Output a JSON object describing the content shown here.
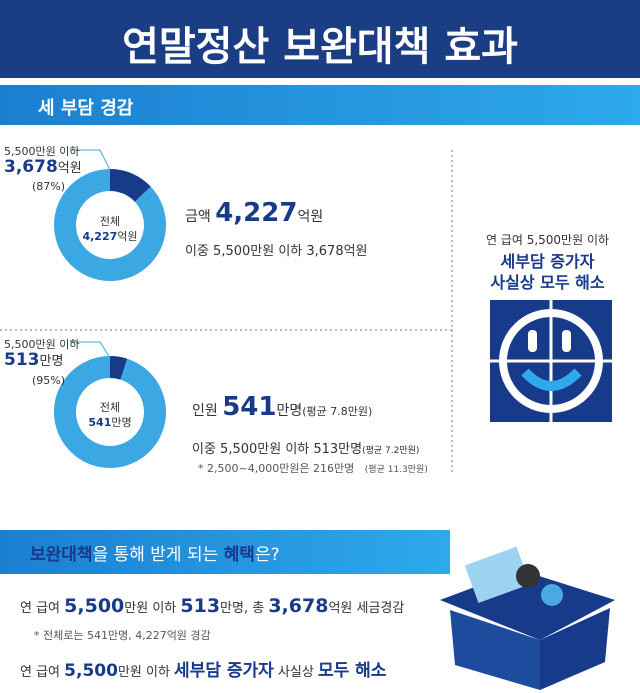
{
  "header": {
    "title": "연말정산 보완대책 효과"
  },
  "section1": {
    "title": "세 부담 경감",
    "tax": {
      "callout": [
        "5,500만원 이하",
        "3,678",
        "억원",
        "(87%)"
      ],
      "share": 87,
      "center": [
        "전체",
        "4,227",
        "억원"
      ],
      "amount": [
        "금액 ",
        "4,227",
        "억원"
      ],
      "sub": "이중 5,500만원 이하 3,678억원"
    },
    "people": {
      "callout": [
        "5,500만원 이하",
        "513",
        "만명",
        "(95%)"
      ],
      "share": 95,
      "center": [
        "전체",
        "541",
        "만명"
      ],
      "amount": [
        "인원 ",
        "541",
        "만명",
        "(평균 7.8만원)"
      ],
      "sub": [
        "이중 5,500만원 이하 513만명",
        "(평균 7.2만원)"
      ],
      "note": [
        "* 2,500~4,000만원은 216만명",
        "(평균 11.3만원)"
      ]
    },
    "side": [
      "연 급여 5,500만원 이하",
      "세부담 증가자",
      "사실상 모두 해소"
    ]
  },
  "benefits": {
    "title": [
      "보완대책",
      "을 통해 받게 되는 ",
      "혜택",
      "은?"
    ],
    "lines": [
      [
        "연 급여 ",
        "5,500",
        "만원 이하 ",
        "513",
        "만명, 총 ",
        "3,678",
        "억원 세금경감"
      ],
      [
        "* 전체로는 541만명, 4,227억원 경감"
      ],
      [
        "연 급여 ",
        "5,500",
        "만원 이하 ",
        "세부담 증가자",
        " 사실상 ",
        "모두 해소"
      ]
    ]
  }
}
